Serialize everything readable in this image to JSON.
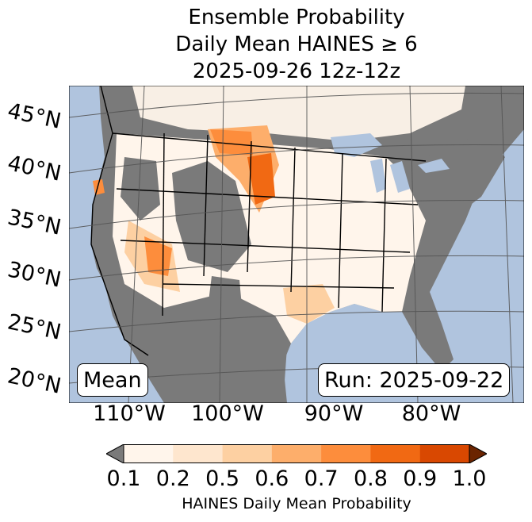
{
  "title": {
    "line1": "Ensemble Probability",
    "line2": "Daily Mean HAINES ≥ 6",
    "line3": "2025-09-26 12z-12z"
  },
  "map": {
    "lat_labels": [
      "45°N",
      "40°N",
      "35°N",
      "30°N",
      "25°N",
      "20°N"
    ],
    "lon_labels": [
      "110°W",
      "100°W",
      "90°W",
      "80°W"
    ],
    "mean_label": "Mean",
    "run_label": "Run: 2025-09-22",
    "colors": {
      "ocean": "#b0c4de",
      "masked": "#7a7a7a",
      "grid": "#555555",
      "border": "#000000"
    }
  },
  "colorbar": {
    "label": "HAINES Daily Mean Probability",
    "ticks": [
      "0.1",
      "0.2",
      "0.5",
      "0.6",
      "0.7",
      "0.8",
      "0.9",
      "1.0"
    ],
    "under_color": "#7a7a7a",
    "over_color": "#6b2400",
    "colors": [
      "#fff5eb",
      "#fee6ce",
      "#fdd0a2",
      "#fdae6b",
      "#fd8d3c",
      "#f16913",
      "#d94801"
    ]
  }
}
